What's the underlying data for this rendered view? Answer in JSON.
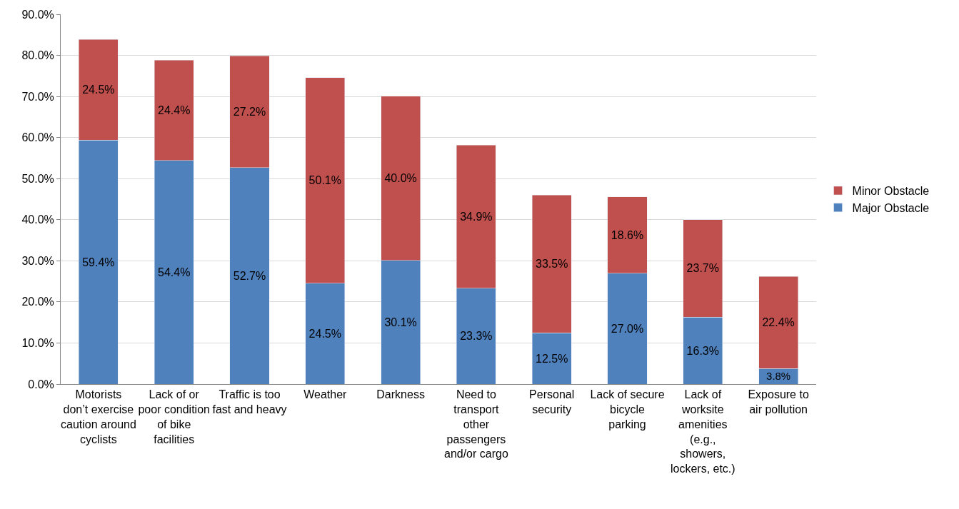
{
  "chart_data": {
    "type": "bar",
    "stacked": true,
    "categories": [
      "Motorists don’t exercise caution around cyclists",
      "Lack of or poor condition of bike facilities",
      "Traffic is too fast and heavy",
      "Weather",
      "Darkness",
      "Need to transport other passengers and/or cargo",
      "Personal security",
      "Lack of secure bicycle parking",
      "Lack of worksite amenities (e.g., showers, lockers, etc.)",
      "Exposure to air pollution"
    ],
    "series": [
      {
        "name": "Major Obstacle",
        "color": "#4f81bd",
        "values": [
          59.4,
          54.4,
          52.7,
          24.5,
          30.1,
          23.3,
          12.5,
          27.0,
          16.3,
          3.8
        ],
        "value_labels": [
          "59.4%",
          "54.4%",
          "52.7%",
          "24.5%",
          "30.1%",
          "23.3%",
          "12.5%",
          "27.0%",
          "16.3%",
          "3.8%"
        ]
      },
      {
        "name": "Minor Obstacle",
        "color": "#c0504d",
        "values": [
          24.5,
          24.4,
          27.2,
          50.1,
          40.0,
          34.9,
          33.5,
          18.6,
          23.7,
          22.4
        ],
        "value_labels": [
          "24.5%",
          "24.4%",
          "27.2%",
          "50.1%",
          "40.0%",
          "34.9%",
          "33.5%",
          "18.6%",
          "23.7%",
          "22.4%"
        ]
      }
    ],
    "ylim": [
      0,
      90
    ],
    "yticks": [
      {
        "value": 0,
        "label": "0.0%"
      },
      {
        "value": 10,
        "label": "10.0%"
      },
      {
        "value": 20,
        "label": "20.0%"
      },
      {
        "value": 30,
        "label": "30.0%"
      },
      {
        "value": 40,
        "label": "40.0%"
      },
      {
        "value": 50,
        "label": "50.0%"
      },
      {
        "value": 60,
        "label": "60.0%"
      },
      {
        "value": 70,
        "label": "70.0%"
      },
      {
        "value": 80,
        "label": "80.0%"
      },
      {
        "value": 90,
        "label": "90.0%"
      }
    ],
    "grid": "y",
    "legend": "right"
  }
}
